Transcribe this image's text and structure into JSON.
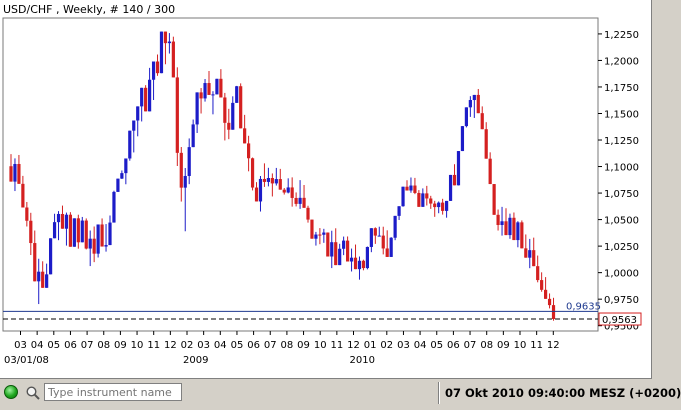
{
  "header": {
    "title": "USD/CHF , Weekly, # 140 / 300"
  },
  "status": {
    "instrument_placeholder": "Type instrument name",
    "datetime": "07 Okt 2010 09:40:00  MESZ (+0200)"
  },
  "colors": {
    "up": "#1c1cc8",
    "down": "#d42020",
    "grid": "#b8b8b8",
    "line": "#1f3a8f"
  },
  "icons": [
    "status-indicator-icon",
    "search-icon"
  ],
  "chart_data": {
    "type": "candlestick",
    "symbol": "USD/CHF",
    "timeframe": "Weekly",
    "ylim": [
      0.945,
      1.24
    ],
    "y_ticks": [
      {
        "value": 1.225,
        "label": "1,2250"
      },
      {
        "value": 1.2,
        "label": "1,2000"
      },
      {
        "value": 1.175,
        "label": "1,1750"
      },
      {
        "value": 1.15,
        "label": "1,1500"
      },
      {
        "value": 1.125,
        "label": "1,1250"
      },
      {
        "value": 1.1,
        "label": "1,1000"
      },
      {
        "value": 1.075,
        "label": "1,0750"
      },
      {
        "value": 1.05,
        "label": "1,0500"
      },
      {
        "value": 1.025,
        "label": "1,0250"
      },
      {
        "value": 1.0,
        "label": "1,0000"
      },
      {
        "value": 0.975,
        "label": "0,9750"
      },
      {
        "value": 0.95,
        "label": "0,9500"
      }
    ],
    "month_ticks": [
      "03",
      "04",
      "05",
      "06",
      "07",
      "08",
      "09",
      "10",
      "11",
      "12",
      "02",
      "03",
      "04",
      "05",
      "06",
      "07",
      "08",
      "09",
      "10",
      "11",
      "12",
      "01",
      "02",
      "03",
      "04",
      "05",
      "06",
      "07",
      "08",
      "09",
      "10",
      "11",
      "12"
    ],
    "year_labels": [
      {
        "label": "03/01/08",
        "index": 0
      },
      {
        "label": "2009",
        "index": 10
      },
      {
        "label": "2010",
        "index": 20
      }
    ],
    "horizontal_lines": [
      {
        "value": 0.9635,
        "label": "0,9635",
        "style": "solid"
      },
      {
        "value": 0.9563,
        "label": "0,9563",
        "style": "dashed",
        "boxed": true
      }
    ],
    "ohlc": [
      [
        1.1003,
        1.1117,
        1.0858,
        1.0858
      ],
      [
        1.0858,
        1.1077,
        1.0769,
        1.1024
      ],
      [
        1.1024,
        1.1109,
        1.0837,
        1.0837
      ],
      [
        1.0837,
        1.0912,
        1.0614,
        1.0614
      ],
      [
        1.0614,
        1.0666,
        1.0435,
        1.0489
      ],
      [
        1.0489,
        1.0564,
        1.0166,
        1.0279
      ],
      [
        1.0279,
        1.0397,
        0.9918,
        0.9918
      ],
      [
        0.9918,
        1.0131,
        0.9704,
        1.0009
      ],
      [
        1.0009,
        1.0107,
        0.9857,
        0.9857
      ],
      [
        0.9857,
        1.0085,
        0.9857,
        0.9984
      ],
      [
        0.9984,
        1.0324,
        0.9984,
        1.0324
      ],
      [
        1.0324,
        1.0555,
        1.0324,
        1.0476
      ],
      [
        1.0476,
        1.058,
        1.0306,
        1.0553
      ],
      [
        1.0553,
        1.0632,
        1.0414,
        1.0414
      ],
      [
        1.0414,
        1.0566,
        1.0255,
        1.0546
      ],
      [
        1.0546,
        1.057,
        1.0244,
        1.0244
      ],
      [
        1.0244,
        1.0512,
        1.0244,
        1.0512
      ],
      [
        1.0512,
        1.0546,
        1.0226,
        1.0286
      ],
      [
        1.0286,
        1.0525,
        1.0286,
        1.0491
      ],
      [
        1.0491,
        1.0511,
        1.0219,
        1.0227
      ],
      [
        1.0227,
        1.0397,
        1.0062,
        1.032
      ],
      [
        1.032,
        1.0435,
        1.0099,
        1.0179
      ],
      [
        1.0179,
        1.0454,
        1.0143,
        1.0454
      ],
      [
        1.0454,
        1.0511,
        1.0246,
        1.0246
      ],
      [
        1.0246,
        1.0458,
        1.0198,
        1.026
      ],
      [
        1.026,
        1.0539,
        1.0259,
        1.0472
      ],
      [
        1.0472,
        1.0772,
        1.0472,
        1.0761
      ],
      [
        1.0761,
        1.0886,
        1.0761,
        1.0886
      ],
      [
        1.0886,
        1.0963,
        1.0883,
        1.0938
      ],
      [
        1.0938,
        1.1076,
        1.0833,
        1.1076
      ],
      [
        1.1076,
        1.1338,
        1.1055,
        1.1338
      ],
      [
        1.1338,
        1.1434,
        1.1133,
        1.1434
      ],
      [
        1.1434,
        1.1567,
        1.1285,
        1.1567
      ],
      [
        1.1567,
        1.1742,
        1.1425,
        1.1742
      ],
      [
        1.1742,
        1.1767,
        1.152,
        1.152
      ],
      [
        1.152,
        1.193,
        1.152,
        1.1818
      ],
      [
        1.1818,
        1.199,
        1.1627,
        1.199
      ],
      [
        1.199,
        1.2056,
        1.1855,
        1.188
      ],
      [
        1.188,
        1.2272,
        1.188,
        1.2272
      ],
      [
        1.2272,
        1.2272,
        1.1964,
        1.2163
      ],
      [
        1.2163,
        1.2258,
        1.2065,
        1.2178
      ],
      [
        1.2178,
        1.2224,
        1.184,
        1.184
      ],
      [
        1.184,
        1.1935,
        1.1005,
        1.1129
      ],
      [
        1.1129,
        1.1184,
        1.067,
        1.0801
      ],
      [
        1.0801,
        1.0986,
        1.039,
        1.0911
      ],
      [
        1.0911,
        1.1265,
        1.0834,
        1.1183
      ],
      [
        1.1183,
        1.1443,
        1.1183,
        1.1397
      ],
      [
        1.1397,
        1.1699,
        1.1316,
        1.1699
      ],
      [
        1.1699,
        1.174,
        1.15,
        1.1642
      ],
      [
        1.1642,
        1.1825,
        1.1612,
        1.1787
      ],
      [
        1.1787,
        1.19,
        1.1675,
        1.1675
      ],
      [
        1.1675,
        1.171,
        1.1492,
        1.168
      ],
      [
        1.168,
        1.1827,
        1.168,
        1.1827
      ],
      [
        1.1827,
        1.1918,
        1.1651,
        1.1651
      ],
      [
        1.1651,
        1.1694,
        1.1246,
        1.1412
      ],
      [
        1.1412,
        1.1544,
        1.1258,
        1.1347
      ],
      [
        1.1347,
        1.1662,
        1.1347,
        1.16
      ],
      [
        1.16,
        1.176,
        1.16,
        1.1757
      ],
      [
        1.1757,
        1.1784,
        1.136,
        1.136
      ],
      [
        1.136,
        1.1487,
        1.1218,
        1.1218
      ],
      [
        1.1218,
        1.129,
        1.0955,
        1.1078
      ],
      [
        1.1078,
        1.1085,
        1.0775,
        1.0802
      ],
      [
        1.0802,
        1.0853,
        1.0671,
        1.0671
      ],
      [
        1.0671,
        1.0911,
        1.0576,
        1.0883
      ],
      [
        1.0883,
        1.103,
        1.0808,
        1.0855
      ],
      [
        1.0855,
        1.0988,
        1.0813,
        1.0892
      ],
      [
        1.0892,
        1.0935,
        1.0718,
        1.0841
      ],
      [
        1.0841,
        1.0987,
        1.0821,
        1.0882
      ],
      [
        1.0882,
        1.0978,
        1.0782,
        1.0782
      ],
      [
        1.0782,
        1.0798,
        1.0736,
        1.0755
      ],
      [
        1.0755,
        1.0889,
        1.0747,
        1.0803
      ],
      [
        1.0803,
        1.0898,
        1.0622,
        1.0704
      ],
      [
        1.0704,
        1.0756,
        1.0624,
        1.0648
      ],
      [
        1.0648,
        1.0872,
        1.0601,
        1.0705
      ],
      [
        1.0705,
        1.0826,
        1.0611,
        1.0611
      ],
      [
        1.0611,
        1.063,
        1.0472,
        1.05
      ],
      [
        1.05,
        1.05,
        1.032,
        1.032
      ],
      [
        1.032,
        1.0384,
        1.0255,
        1.0359
      ],
      [
        1.0359,
        1.042,
        1.0268,
        1.0357
      ],
      [
        1.0357,
        1.0413,
        1.0281,
        1.0378
      ],
      [
        1.0378,
        1.0379,
        1.0152,
        1.0152
      ],
      [
        1.0152,
        1.0395,
        1.0043,
        1.0287
      ],
      [
        1.0287,
        1.0418,
        1.0071,
        1.0071
      ],
      [
        1.0071,
        1.0272,
        1.0071,
        1.0225
      ],
      [
        1.0225,
        1.034,
        1.0165,
        1.0302
      ],
      [
        1.0302,
        1.0341,
        1.0105,
        1.0105
      ],
      [
        1.0105,
        1.0227,
        1.0011,
        1.0141
      ],
      [
        1.0141,
        1.0265,
        1.0033,
        1.0033
      ],
      [
        1.0033,
        1.0152,
        0.9934,
        1.0112
      ],
      [
        1.0112,
        1.0122,
        1.0022,
        1.0043
      ],
      [
        1.0043,
        1.0246,
        1.0031,
        1.0242
      ],
      [
        1.0242,
        1.0419,
        1.0193,
        1.0419
      ],
      [
        1.0419,
        1.0427,
        1.0271,
        1.0349
      ],
      [
        1.0349,
        1.0433,
        1.0345,
        1.0349
      ],
      [
        1.0349,
        1.0433,
        1.0172,
        1.0228
      ],
      [
        1.0228,
        1.0399,
        1.0148,
        1.0148
      ],
      [
        1.0148,
        1.0335,
        1.0148,
        1.0329
      ],
      [
        1.0329,
        1.0535,
        1.0306,
        1.0535
      ],
      [
        1.0535,
        1.0626,
        1.0496,
        1.0626
      ],
      [
        1.0626,
        1.081,
        1.0621,
        1.081
      ],
      [
        1.081,
        1.0871,
        1.0774,
        1.0774
      ],
      [
        1.0774,
        1.0897,
        1.0753,
        1.0821
      ],
      [
        1.0821,
        1.0893,
        1.074,
        1.0751
      ],
      [
        1.0751,
        1.0778,
        1.062,
        1.062
      ],
      [
        1.062,
        1.0794,
        1.062,
        1.0747
      ],
      [
        1.0747,
        1.0818,
        1.0633,
        1.0699
      ],
      [
        1.0699,
        1.0724,
        1.0601,
        1.0651
      ],
      [
        1.0651,
        1.0677,
        1.0526,
        1.0618
      ],
      [
        1.0618,
        1.0671,
        1.056,
        1.066
      ],
      [
        1.066,
        1.0696,
        1.0547,
        1.0582
      ],
      [
        1.0582,
        1.0676,
        1.0518,
        1.0676
      ],
      [
        1.0676,
        1.0921,
        1.0676,
        1.0921
      ],
      [
        1.0921,
        1.1022,
        1.0823,
        1.0823
      ],
      [
        1.0823,
        1.1146,
        1.0822,
        1.1146
      ],
      [
        1.1146,
        1.1381,
        1.1146,
        1.1381
      ],
      [
        1.1381,
        1.1558,
        1.1369,
        1.1558
      ],
      [
        1.1558,
        1.1663,
        1.1468,
        1.1627
      ],
      [
        1.1627,
        1.1675,
        1.1458,
        1.1675
      ],
      [
        1.1675,
        1.1731,
        1.1503,
        1.1503
      ],
      [
        1.1503,
        1.1567,
        1.1352,
        1.1352
      ],
      [
        1.1352,
        1.1418,
        1.1074,
        1.1074
      ],
      [
        1.1074,
        1.1134,
        1.0835,
        1.0835
      ],
      [
        1.0835,
        1.0835,
        1.0545,
        1.0545
      ],
      [
        1.0545,
        1.0595,
        1.0397,
        1.0449
      ],
      [
        1.0449,
        1.062,
        1.0349,
        1.0484
      ],
      [
        1.0484,
        1.0607,
        1.0354,
        1.0354
      ],
      [
        1.0354,
        1.0556,
        1.0319,
        1.0517
      ],
      [
        1.0517,
        1.0567,
        1.0307,
        1.0307
      ],
      [
        1.0307,
        1.0485,
        1.0239,
        1.0474
      ],
      [
        1.0474,
        1.0492,
        1.0229,
        1.0229
      ],
      [
        1.0229,
        1.036,
        1.0141,
        1.0141
      ],
      [
        1.0141,
        1.0318,
        1.0042,
        1.0212
      ],
      [
        1.0212,
        1.033,
        1.0061,
        1.0061
      ],
      [
        1.0061,
        1.0161,
        0.9909,
        0.993
      ],
      [
        0.993,
        1.0003,
        0.982,
        0.9838
      ],
      [
        0.9838,
        0.9958,
        0.9753,
        0.9753
      ],
      [
        0.9753,
        0.9804,
        0.9663,
        0.9694
      ],
      [
        0.9694,
        0.9763,
        0.9547,
        0.9563
      ]
    ]
  }
}
